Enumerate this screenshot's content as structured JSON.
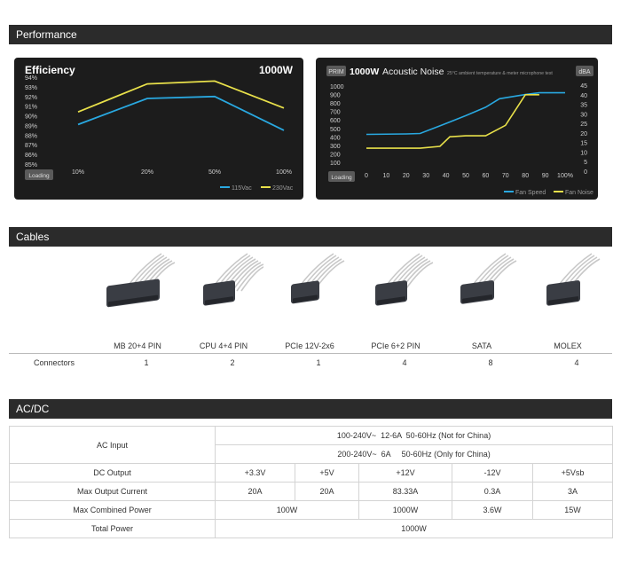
{
  "sections": {
    "performance": "Performance",
    "cables": "Cables",
    "acdc": "AC/DC"
  },
  "chart_data": [
    {
      "type": "line",
      "title": "Efficiency",
      "subtitle": "1000W",
      "x": [
        "10%",
        "20%",
        "50%",
        "100%"
      ],
      "ytick_labels": [
        "94%",
        "93%",
        "92%",
        "91%",
        "90%",
        "89%",
        "88%",
        "87%",
        "86%",
        "85%"
      ],
      "ylim": [
        85,
        94
      ],
      "series": [
        {
          "name": "115Vac",
          "color": "#29a8e0",
          "values": [
            89.1,
            91.8,
            92.0,
            88.5
          ]
        },
        {
          "name": "230Vac",
          "color": "#e8e04a",
          "values": [
            90.4,
            93.3,
            93.6,
            90.8
          ]
        }
      ],
      "badge": "Loading",
      "legend_position": "bottom-right",
      "grid": false
    },
    {
      "type": "line",
      "title_prefix": "PRIM",
      "title": "1000W",
      "title_rest": "Acoustic Noise",
      "subtitle": "25°C ambient temperature & meter microphone test",
      "y2_unit": "dBA",
      "x": [
        "0",
        "10",
        "20",
        "30",
        "40",
        "50",
        "60",
        "70",
        "80",
        "90",
        "100%"
      ],
      "x_values": [
        0,
        10,
        20,
        30,
        40,
        50,
        60,
        70,
        80,
        90,
        100
      ],
      "ytick_labels": [
        "1000",
        "900",
        "800",
        "700",
        "600",
        "500",
        "400",
        "300",
        "200",
        "100"
      ],
      "y2tick_labels": [
        "45",
        "40",
        "35",
        "30",
        "25",
        "20",
        "15",
        "10",
        "5",
        "0"
      ],
      "ylim": [
        100,
        1000
      ],
      "y2lim": [
        0,
        45
      ],
      "series": [
        {
          "name": "Fan Speed",
          "axis": "left",
          "color": "#29a8e0",
          "points": [
            [
              0,
              430
            ],
            [
              20,
              435
            ],
            [
              27,
              440
            ],
            [
              37,
              530
            ],
            [
              50,
              650
            ],
            [
              60,
              750
            ],
            [
              67,
              850
            ],
            [
              80,
              900
            ],
            [
              87,
              920
            ],
            [
              100,
              920
            ]
          ]
        },
        {
          "name": "Fan Noise",
          "axis": "right",
          "color": "#e8e04a",
          "points": [
            [
              0,
              12
            ],
            [
              20,
              12
            ],
            [
              27,
              12
            ],
            [
              37,
              13
            ],
            [
              42,
              18
            ],
            [
              50,
              18.5
            ],
            [
              60,
              18.5
            ],
            [
              70,
              24
            ],
            [
              80,
              40
            ],
            [
              87,
              40
            ]
          ]
        }
      ],
      "badge": "Loading",
      "legend_position": "bottom-right",
      "grid": false
    }
  ],
  "cables": {
    "items": [
      {
        "label": "MB 20+4 PIN",
        "icon": "mb-20-4-pin-connector-icon",
        "count": "1"
      },
      {
        "label": "CPU 4+4 PIN",
        "icon": "cpu-4-4-pin-connector-icon",
        "count": "2"
      },
      {
        "label": "PCIe 12V-2x6",
        "icon": "pcie-12v-2x6-connector-icon",
        "count": "1"
      },
      {
        "label": "PCIe 6+2 PIN",
        "icon": "pcie-6-2-pin-connector-icon",
        "count": "4"
      },
      {
        "label": "SATA",
        "icon": "sata-connector-icon",
        "count": "8"
      },
      {
        "label": "MOLEX",
        "icon": "molex-connector-icon",
        "count": "4"
      }
    ],
    "row_label": "Connectors"
  },
  "acdc": {
    "ac_input_label": "AC Input",
    "ac_input_1": "100-240V~  12-6A  50-60Hz (Not for China)",
    "ac_input_2": "200-240V~  6A     50-60Hz (Only for China)",
    "dc_output_label": "DC Output",
    "rails": [
      "+3.3V",
      "+5V",
      "+12V",
      "-12V",
      "+5Vsb"
    ],
    "max_current_label": "Max Output Current",
    "currents": [
      "20A",
      "20A",
      "83.33A",
      "0.3A",
      "3A"
    ],
    "max_combined_label": "Max Combined Power",
    "combined": [
      "100W",
      "1000W",
      "3.6W",
      "15W"
    ],
    "total_label": "Total Power",
    "total": "1000W"
  }
}
